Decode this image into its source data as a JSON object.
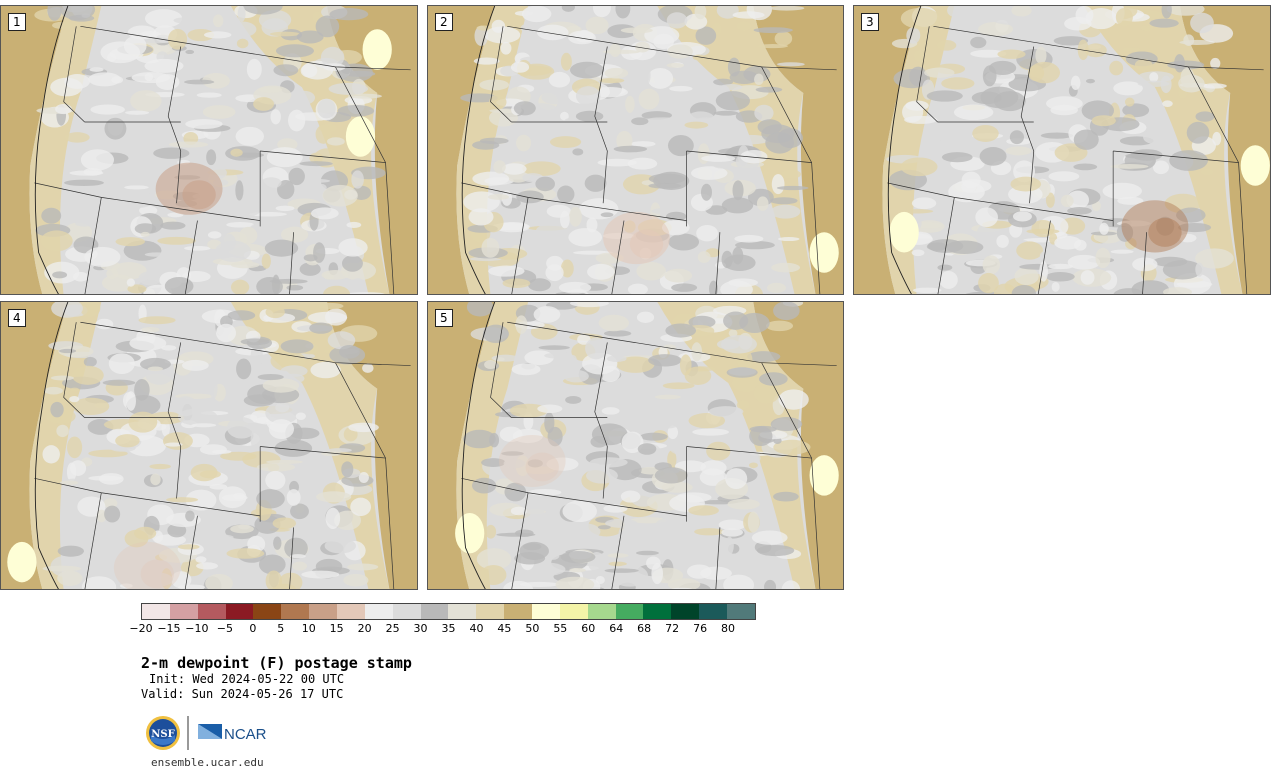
{
  "panels": [
    {
      "label": "1"
    },
    {
      "label": "2"
    },
    {
      "label": "3"
    },
    {
      "label": "4"
    },
    {
      "label": "5"
    }
  ],
  "colorbar": {
    "colors": [
      "#f2e6e6",
      "#d4a0a3",
      "#b45a5f",
      "#8b1a23",
      "#8a4515",
      "#b07850",
      "#c9a088",
      "#e3c8b8",
      "#ededed",
      "#dcdcdc",
      "#b9b9b9",
      "#e3e1d6",
      "#e1d4ac",
      "#c9b074",
      "#fefed6",
      "#f4f4a8",
      "#a6d88e",
      "#45ab60",
      "#00703c",
      "#00442a",
      "#1b5a5a",
      "#517a7a"
    ],
    "ticks": [
      "-20",
      "-15",
      "-10",
      "-5",
      "0",
      "5",
      "10",
      "15",
      "20",
      "25",
      "30",
      "35",
      "40",
      "45",
      "50",
      "55",
      "60",
      "64",
      "68",
      "72",
      "76",
      "80"
    ]
  },
  "title": "2-m dewpoint (F) postage stamp",
  "init": "Init: Wed 2024-05-22 00 UTC",
  "valid": "Valid: Sun 2024-05-26 17 UTC",
  "logos": {
    "nsf": "NSF",
    "ncar": "NCAR"
  },
  "site": "ensemble.ucar.edu"
}
